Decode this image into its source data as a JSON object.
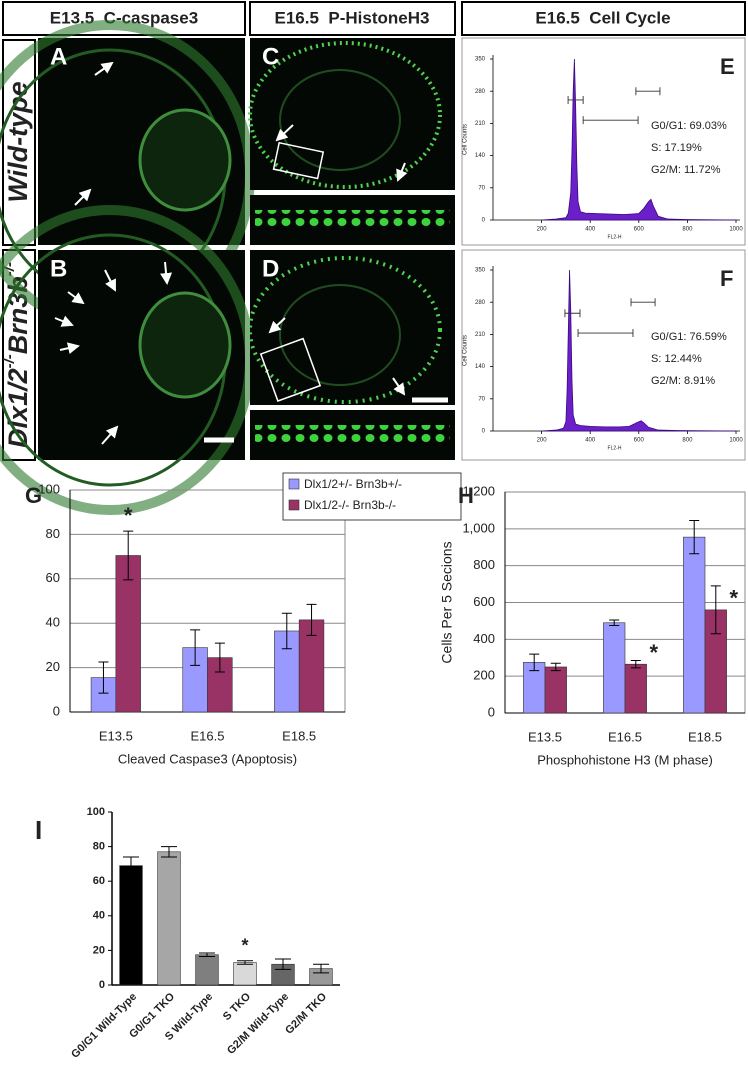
{
  "headers": [
    "E13.5  C-caspase3",
    "E16.5  P-HistoneH3",
    "E16.5  Cell Cycle"
  ],
  "row_labels": [
    "Wild-type",
    {
      "parts": [
        "Dlx1/2",
        "-/-",
        "Brn3b",
        "-/-"
      ]
    }
  ],
  "panel_letters": [
    "A",
    "B",
    "C",
    "D"
  ],
  "chart_data": [
    {
      "type": "area",
      "label": "E",
      "xlabel": "FL2-H",
      "ylabel": "Cell Counts",
      "color": "#6a1fc8",
      "x": [
        200,
        260,
        300,
        310,
        320,
        325,
        330,
        335,
        340,
        345,
        350,
        360,
        380,
        420,
        480,
        540,
        600,
        620,
        640,
        650,
        660,
        680,
        720,
        800,
        1000
      ],
      "values": [
        0,
        2,
        5,
        15,
        60,
        150,
        280,
        350,
        250,
        120,
        40,
        18,
        15,
        14,
        13,
        12,
        14,
        25,
        40,
        45,
        30,
        8,
        2,
        1,
        0
      ],
      "xlim": [
        0,
        1000
      ],
      "ylim": [
        0,
        350
      ],
      "xticks": [
        200,
        400,
        600,
        800,
        1000
      ],
      "yticks": [
        0,
        70,
        140,
        210,
        280,
        350
      ],
      "gates": [
        {
          "range": [
            309,
            371
          ],
          "level": 261
        },
        {
          "range": [
            371,
            597
          ],
          "level": 217
        },
        {
          "range": [
            588,
            687
          ],
          "level": 280
        }
      ],
      "stats": [
        "G0/G1: 69.03%",
        "S:        17.19%",
        "G2/M:   11.72%"
      ]
    },
    {
      "type": "area",
      "label": "F",
      "xlabel": "FL2-H",
      "ylabel": "Cell Counts",
      "color": "#6a1fc8",
      "x": [
        200,
        260,
        290,
        300,
        305,
        310,
        315,
        320,
        325,
        330,
        340,
        360,
        400,
        460,
        520,
        560,
        580,
        600,
        610,
        620,
        640,
        680,
        760,
        1000
      ],
      "values": [
        0,
        2,
        6,
        20,
        90,
        220,
        350,
        260,
        110,
        35,
        15,
        12,
        10,
        9,
        9,
        10,
        15,
        20,
        22,
        18,
        8,
        2,
        1,
        0
      ],
      "xlim": [
        0,
        1000
      ],
      "ylim": [
        0,
        350
      ],
      "xticks": [
        200,
        400,
        600,
        800,
        1000
      ],
      "yticks": [
        0,
        70,
        140,
        210,
        280,
        350
      ],
      "gates": [
        {
          "range": [
            296,
            358
          ],
          "level": 256
        },
        {
          "range": [
            350,
            576
          ],
          "level": 213
        },
        {
          "range": [
            568,
            667
          ],
          "level": 280
        }
      ],
      "stats": [
        "G0/G1: 76.59%",
        "S:        12.44%",
        "G2/M:   8.91%"
      ]
    },
    {
      "type": "bar",
      "label": "G",
      "xlabel": "Cleaved Caspase3 (Apoptosis)",
      "grid": true,
      "categories": [
        "E13.5",
        "E16.5",
        "E18.5"
      ],
      "ylim": [
        0,
        100
      ],
      "yticks": [
        0,
        20,
        40,
        60,
        80,
        100
      ],
      "series": [
        {
          "name": "Dlx1/2+/- Brn3b+/-",
          "color": "#9999ff",
          "values": [
            15.5,
            29,
            36.5
          ],
          "errors": [
            7,
            8,
            8
          ],
          "annotations": [
            null,
            null,
            null
          ]
        },
        {
          "name": "Dlx1/2-/- Brn3b-/-",
          "color": "#993366",
          "values": [
            70.5,
            24.5,
            41.5
          ],
          "errors": [
            11,
            6.5,
            7
          ],
          "annotations": [
            "*",
            null,
            null
          ]
        }
      ]
    },
    {
      "type": "bar",
      "label": "H",
      "xlabel": "Phosphohistone H3 (M phase)",
      "ylabel": "Cells Per 5 Secions",
      "grid": true,
      "categories": [
        "E13.5",
        "E16.5",
        "E18.5"
      ],
      "ylim": [
        0,
        1200
      ],
      "yticks": [
        0,
        200,
        400,
        600,
        800,
        {
          "value": 1000,
          "label": "1,000"
        },
        {
          "value": 1200,
          "label": "1,200"
        }
      ],
      "series": [
        {
          "name": "Dlx1/2+/- Brn3b+/-",
          "color": "#9999ff",
          "values": [
            275,
            490,
            955
          ],
          "errors": [
            45,
            15,
            90
          ],
          "annotations": [
            null,
            null,
            null
          ]
        },
        {
          "name": "Dlx1/2-/- Brn3b-/-",
          "color": "#993366",
          "values": [
            250,
            265,
            560
          ],
          "errors": [
            20,
            20,
            130
          ],
          "annotations": [
            null,
            "*",
            "*"
          ]
        }
      ]
    },
    {
      "type": "bar",
      "label": "I",
      "grid": false,
      "categories": [
        "G0/G1 Wild-Type",
        "G0/G1 TKO",
        "S Wild-Type",
        "S TKO",
        "G2/M Wild-Type",
        "G2/M TKO"
      ],
      "ylim": [
        0,
        100
      ],
      "yticks": [
        0,
        20,
        40,
        60,
        80,
        100
      ],
      "series": [
        {
          "colors": [
            "#000000",
            "#a6a6a6",
            "#7f7f7f",
            "#d9d9d9",
            "#666666",
            "#999999"
          ],
          "values": [
            69,
            77,
            17.5,
            13,
            12,
            9.5
          ],
          "errors": [
            5,
            3,
            1,
            1,
            3,
            2.5
          ],
          "annotations": [
            null,
            null,
            null,
            "*",
            null,
            null
          ]
        }
      ]
    }
  ]
}
